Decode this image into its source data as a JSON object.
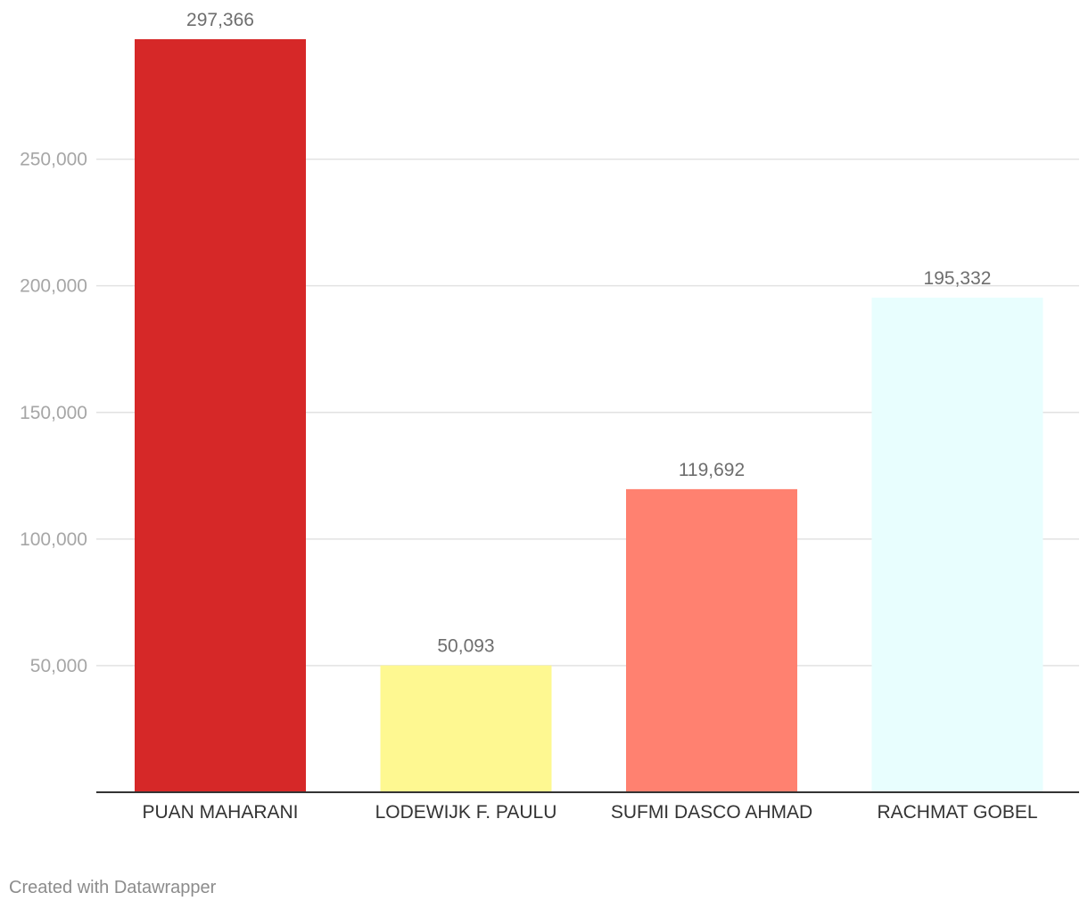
{
  "chart_data": {
    "type": "bar",
    "categories": [
      "PUAN MAHARANI",
      "LODEWIJK F. PAULU",
      "SUFMI DASCO AHMAD",
      "RACHMAT GOBEL"
    ],
    "values": [
      297366,
      50093,
      119692,
      195332
    ],
    "value_labels": [
      "297,366",
      "50,093",
      "119,692",
      "195,332"
    ],
    "colors": [
      "#d62828",
      "#fef891",
      "#ff8170",
      "#e8fefe"
    ],
    "yticks": [
      50000,
      100000,
      150000,
      200000,
      250000
    ],
    "ytick_labels": [
      "50,000",
      "100,000",
      "150,000",
      "200,000",
      "250,000"
    ],
    "ylim": [
      0,
      297366
    ],
    "grid": true,
    "title": "",
    "xlabel": "",
    "ylabel": ""
  },
  "footer": {
    "credit": "Created with Datawrapper"
  }
}
